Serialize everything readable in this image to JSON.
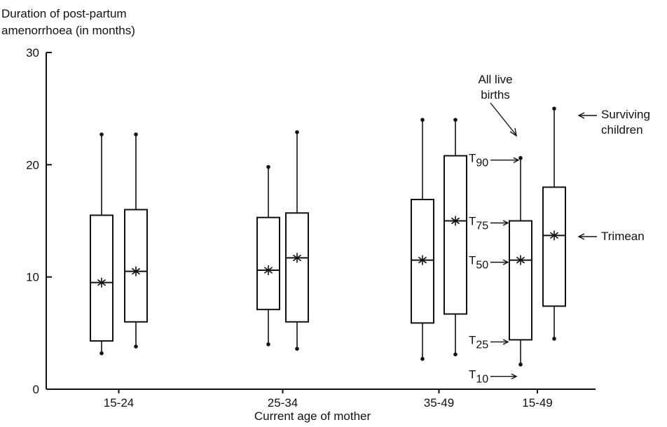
{
  "chart_data": {
    "type": "box",
    "title": "",
    "ylabel_lines": [
      "Duration of post-partum",
      "amenorrhoea (in months)"
    ],
    "xlabel": "Current age of mother",
    "ylim": [
      0,
      30
    ],
    "yticks": [
      0,
      10,
      20,
      30
    ],
    "groups": [
      {
        "label": "15-24",
        "boxes": [
          {
            "series": "All live births",
            "T10": 3.2,
            "T25": 4.3,
            "T50": 9.5,
            "T75": 15.5,
            "T90": 22.7,
            "trimean": 9.5
          },
          {
            "series": "Surviving children",
            "T10": 3.8,
            "T25": 6.0,
            "T50": 10.5,
            "T75": 16.0,
            "T90": 22.7,
            "trimean": 10.5
          }
        ]
      },
      {
        "label": "25-34",
        "boxes": [
          {
            "series": "All live births",
            "T10": 4.0,
            "T25": 7.1,
            "T50": 10.6,
            "T75": 15.3,
            "T90": 19.8,
            "trimean": 10.6
          },
          {
            "series": "Surviving children",
            "T10": 3.6,
            "T25": 6.0,
            "T50": 11.7,
            "T75": 15.7,
            "T90": 22.9,
            "trimean": 11.7
          }
        ]
      },
      {
        "label": "35-49",
        "boxes": [
          {
            "series": "All live births",
            "T10": 2.7,
            "T25": 5.9,
            "T50": 11.5,
            "T75": 16.9,
            "T90": 24.0,
            "trimean": 11.5
          },
          {
            "series": "Surviving children",
            "T10": 3.1,
            "T25": 6.7,
            "T50": 15.0,
            "T75": 20.8,
            "T90": 24.0,
            "trimean": 15.0
          }
        ]
      },
      {
        "label": "15-49",
        "boxes": [
          {
            "series": "All live births",
            "T10": 2.2,
            "T25": 4.4,
            "T50": 11.5,
            "T75": 15.0,
            "T90": 20.6,
            "trimean": 11.5
          },
          {
            "series": "Surviving children",
            "T10": 4.5,
            "T25": 7.4,
            "T50": 13.7,
            "T75": 18.0,
            "T90": 25.0,
            "trimean": 13.7
          }
        ]
      }
    ],
    "annotations": {
      "all_live_births_lines": [
        "All live",
        "births"
      ],
      "surviving_children_lines": [
        "Surviving",
        "children"
      ],
      "trimean": "Trimean",
      "t90": "90",
      "t75": "75",
      "t50": "50",
      "t25": "25",
      "t10": "10",
      "t_prefix": "T"
    }
  }
}
